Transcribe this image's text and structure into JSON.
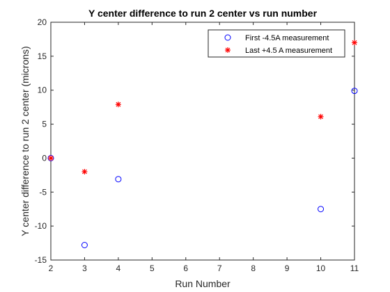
{
  "chart_data": {
    "type": "scatter",
    "title": "Y center difference to run 2 center vs run number",
    "xlabel": "Run Number",
    "ylabel": "Y center difference to run 2 center (microns)",
    "xlim": [
      2,
      11
    ],
    "ylim": [
      -15,
      20
    ],
    "xticks": [
      2,
      3,
      4,
      5,
      6,
      7,
      8,
      9,
      10,
      11
    ],
    "yticks": [
      -15,
      -10,
      -5,
      0,
      5,
      10,
      15,
      20
    ],
    "grid": false,
    "legend_position": "top-right",
    "series": [
      {
        "name": "First -4.5A measurement",
        "marker": "circle",
        "color": "#0000ff",
        "points": [
          {
            "x": 2,
            "y": 0
          },
          {
            "x": 3,
            "y": -12.8
          },
          {
            "x": 4,
            "y": -3.1
          },
          {
            "x": 10,
            "y": -7.5
          },
          {
            "x": 11,
            "y": 9.9
          }
        ]
      },
      {
        "name": "Last +4.5 A measurement",
        "marker": "asterisk",
        "color": "#ff0000",
        "points": [
          {
            "x": 2,
            "y": 0
          },
          {
            "x": 3,
            "y": -2
          },
          {
            "x": 4,
            "y": 7.9
          },
          {
            "x": 10,
            "y": 6.1
          },
          {
            "x": 11,
            "y": 17
          }
        ]
      }
    ]
  }
}
